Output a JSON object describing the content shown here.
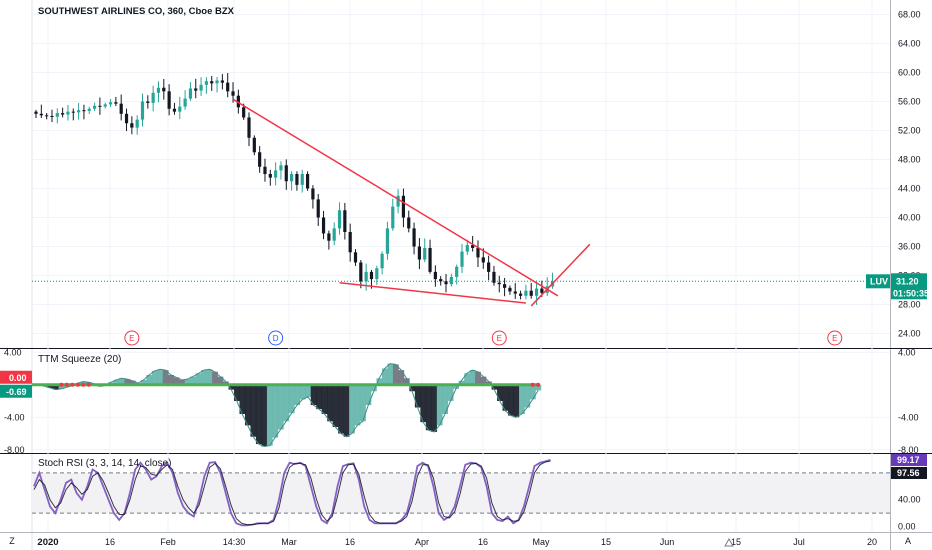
{
  "chart_data": [
    {
      "type": "candlestick",
      "title": "SOUTHWEST AIRLINES CO, 360, Cboe BZX",
      "ylim": [
        22,
        70
      ],
      "y_ticks": [
        "68.00",
        "64.00",
        "60.00",
        "56.00",
        "52.00",
        "48.00",
        "44.00",
        "40.00",
        "36.00",
        "32.00",
        "28.00",
        "24.00"
      ],
      "x_ticks": [
        "2020",
        "16",
        "Feb",
        "14:30",
        "Mar",
        "16",
        "Apr",
        "16",
        "May",
        "15",
        "Jun",
        "15",
        "Jul",
        "20"
      ],
      "grid": true,
      "up_color": "#26a69a",
      "down_color": "#131722",
      "last_price": 31.2,
      "price_tag": {
        "symbol": "LUV",
        "value": "31.20",
        "countdown": "01:50:35",
        "color": "#089981"
      },
      "closes": [
        54.3,
        54.1,
        54.0,
        53.9,
        54.4,
        54.2,
        54.6,
        54.5,
        54.8,
        54.7,
        55.0,
        55.4,
        55.3,
        55.6,
        55.9,
        55.7,
        54.3,
        53.0,
        52.4,
        53.5,
        56.0,
        55.8,
        57.2,
        57.9,
        57.4,
        55.0,
        54.6,
        55.3,
        56.4,
        57.8,
        57.5,
        58.3,
        58.8,
        58.5,
        58.9,
        58.6,
        57.4,
        56.8,
        55.2,
        53.8,
        51.0,
        49.0,
        47.0,
        46.0,
        45.5,
        46.5,
        47.2,
        45.0,
        46.0,
        44.5,
        46.0,
        44.0,
        42.5,
        40.0,
        37.8,
        36.8,
        38.5,
        41.0,
        38.0,
        35.2,
        33.8,
        31.2,
        32.5,
        31.5,
        33.0,
        35.0,
        38.5,
        41.5,
        43.0,
        40.0,
        38.5,
        36.0,
        34.2,
        35.8,
        32.5,
        31.5,
        31.2,
        30.8,
        31.8,
        33.2,
        35.3,
        36.2,
        35.8,
        34.5,
        33.8,
        32.5,
        31.0,
        30.8,
        30.3,
        29.8,
        29.5,
        29.2,
        29.9,
        29.2,
        30.2,
        29.6,
        30.5,
        31.2
      ],
      "trendlines": [
        {
          "name": "upper-trendline",
          "points": [
            [
              37,
              56.3
            ],
            [
              98,
              29.2
            ]
          ],
          "color": "#f23645"
        },
        {
          "name": "lower-trendline",
          "points": [
            [
              57,
              31.0
            ],
            [
              92,
              28.2
            ]
          ],
          "color": "#f23645"
        },
        {
          "name": "breakout-line",
          "points": [
            [
              93,
              27.8
            ],
            [
              104,
              36.3
            ]
          ],
          "color": "#f23645"
        }
      ],
      "events": [
        {
          "label": "E",
          "index": 18,
          "color": "#f23645"
        },
        {
          "label": "D",
          "index": 45,
          "color": "#2962ff"
        },
        {
          "label": "E",
          "index": 87,
          "color": "#f23645"
        },
        {
          "label": "E",
          "index": 150,
          "color": "#f23645"
        }
      ]
    },
    {
      "type": "histogram",
      "title": "TTM Squeeze (20)",
      "ylim": [
        -8.4,
        4.4
      ],
      "y_ticks": [
        "4.00",
        "-4.00",
        "-8.00"
      ],
      "zero_tag": {
        "value": "0.00",
        "color": "#f23645"
      },
      "last_tag": {
        "value": "-0.69",
        "color": "#089981"
      },
      "values": [
        0,
        0,
        -0.2,
        -0.4,
        -0.6,
        -0.5,
        -0.3,
        -0.1,
        0.2,
        0.4,
        0.3,
        0.1,
        -0.2,
        -0.1,
        0.3,
        0.6,
        0.8,
        0.7,
        0.5,
        0.2,
        0.6,
        1.2,
        1.7,
        1.9,
        1.8,
        1.2,
        0.9,
        0.6,
        0.7,
        1.0,
        1.4,
        1.8,
        1.9,
        1.6,
        1.0,
        0.4,
        -0.6,
        -2.0,
        -3.6,
        -5.0,
        -6.4,
        -7.3,
        -7.6,
        -7.5,
        -6.5,
        -5.5,
        -4.5,
        -3.5,
        -2.5,
        -1.8,
        -1.5,
        -2.5,
        -3.0,
        -3.6,
        -4.5,
        -5.2,
        -6.0,
        -6.4,
        -6.0,
        -5.0,
        -4.5,
        -2.5,
        -0.8,
        0.8,
        2.0,
        2.6,
        2.5,
        1.8,
        0.8,
        -0.8,
        -2.8,
        -4.6,
        -5.6,
        -5.8,
        -5.0,
        -3.6,
        -2.0,
        -0.5,
        0.5,
        1.4,
        1.8,
        1.6,
        1.0,
        0.4,
        -0.6,
        -2.0,
        -3.2,
        -3.8,
        -4.0,
        -3.6,
        -2.8,
        -1.8,
        -0.69
      ],
      "squeeze_dots": {
        "on_color": "#f23645",
        "off_color": "#4caf50"
      }
    },
    {
      "type": "line",
      "title": "Stoch RSI (3, 3, 14, 14, close)",
      "ylim": [
        -8,
        108
      ],
      "y_ticks": [
        "40.00",
        "0.00"
      ],
      "bands": [
        20,
        80
      ],
      "series": [
        {
          "name": "K",
          "color": "#2962ff",
          "tag": "99.17",
          "values": [
            60,
            80,
            55,
            30,
            20,
            40,
            65,
            70,
            50,
            40,
            60,
            85,
            80,
            60,
            40,
            20,
            10,
            20,
            50,
            85,
            95,
            85,
            70,
            75,
            90,
            95,
            80,
            50,
            30,
            20,
            15,
            40,
            75,
            95,
            96,
            80,
            50,
            20,
            5,
            2,
            2,
            3,
            5,
            5,
            5,
            10,
            40,
            80,
            95,
            93,
            95,
            90,
            60,
            30,
            10,
            5,
            20,
            60,
            90,
            93,
            94,
            70,
            30,
            10,
            5,
            5,
            5,
            5,
            5,
            10,
            20,
            50,
            90,
            95,
            90,
            60,
            20,
            10,
            15,
            30,
            60,
            92,
            95,
            94,
            88,
            60,
            20,
            10,
            8,
            15,
            5,
            10,
            30,
            60,
            90,
            95,
            97,
            99.17
          ]
        },
        {
          "name": "D",
          "color": "#131722",
          "tag": "97.56",
          "values": [
            55,
            70,
            62,
            40,
            28,
            35,
            55,
            65,
            58,
            48,
            55,
            75,
            80,
            68,
            50,
            30,
            18,
            18,
            40,
            70,
            90,
            88,
            78,
            76,
            85,
            92,
            85,
            60,
            40,
            28,
            20,
            32,
            60,
            88,
            94,
            86,
            60,
            32,
            12,
            5,
            3,
            3,
            4,
            5,
            5,
            8,
            28,
            65,
            88,
            94,
            94,
            92,
            72,
            42,
            18,
            8,
            15,
            45,
            80,
            92,
            93,
            78,
            45,
            18,
            8,
            5,
            5,
            5,
            5,
            8,
            15,
            38,
            75,
            92,
            92,
            72,
            35,
            15,
            13,
            22,
            48,
            82,
            93,
            94,
            90,
            72,
            35,
            15,
            10,
            12,
            8,
            9,
            22,
            48,
            80,
            92,
            96,
            97.56
          ]
        }
      ]
    }
  ]
}
